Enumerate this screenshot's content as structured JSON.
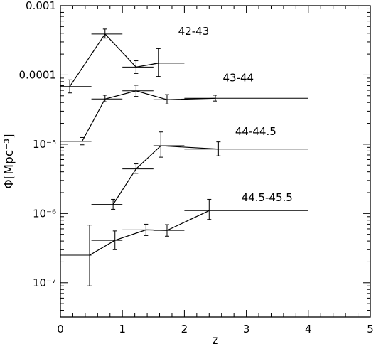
{
  "chart_data": {
    "type": "scatter",
    "xlabel": "z",
    "ylabel": "Φ[Mpc⁻³]",
    "xlim": [
      0,
      5
    ],
    "ylim": [
      3.2e-08,
      0.001
    ],
    "y_scale": "log",
    "x_ticks": [
      "0",
      "1",
      "2",
      "3",
      "4",
      "5"
    ],
    "y_ticks": [
      {
        "value": 0.001,
        "label": "0.001"
      },
      {
        "value": 0.0001,
        "label": "0.0001"
      },
      {
        "value": 1e-05,
        "label": "10⁻⁵"
      },
      {
        "value": 1e-06,
        "label": "10⁻⁶"
      },
      {
        "value": 1e-07,
        "label": "10⁻⁷"
      }
    ],
    "series": [
      {
        "name": "42-43",
        "label_at": {
          "x": 1.9,
          "y": 0.00038
        },
        "points": [
          {
            "x": 0.15,
            "xlo": 0.0,
            "xhi": 0.5,
            "y": 6.8e-05,
            "ylo": 5.5e-05,
            "yhi": 8.5e-05
          },
          {
            "x": 0.72,
            "xlo": 0.5,
            "xhi": 1.0,
            "y": 0.00039,
            "ylo": 0.00034,
            "yhi": 0.00046
          },
          {
            "x": 1.22,
            "xlo": 1.0,
            "xhi": 1.5,
            "y": 0.00013,
            "ylo": 0.000105,
            "yhi": 0.00016
          },
          {
            "x": 1.58,
            "xlo": 1.5,
            "xhi": 2.0,
            "y": 0.000148,
            "ylo": 9.5e-05,
            "yhi": 0.00024
          }
        ]
      },
      {
        "name": "43-44",
        "label_at": {
          "x": 2.62,
          "y": 8.1e-05
        },
        "points": [
          {
            "x": 0.35,
            "xlo": 0.0,
            "xhi": 0.5,
            "y": 1.1e-05,
            "ylo": 9.8e-06,
            "yhi": 1.25e-05
          },
          {
            "x": 0.72,
            "xlo": 0.5,
            "xhi": 1.0,
            "y": 4.5e-05,
            "ylo": 4.1e-05,
            "yhi": 5.1e-05
          },
          {
            "x": 1.22,
            "xlo": 1.0,
            "xhi": 1.5,
            "y": 5.9e-05,
            "ylo": 4.9e-05,
            "yhi": 7.1e-05
          },
          {
            "x": 1.72,
            "xlo": 1.5,
            "xhi": 2.0,
            "y": 4.4e-05,
            "ylo": 3.8e-05,
            "yhi": 5.2e-05
          },
          {
            "x": 2.5,
            "xlo": 2.0,
            "xhi": 4.0,
            "y": 4.6e-05,
            "ylo": 4.2e-05,
            "yhi": 5.1e-05
          }
        ]
      },
      {
        "name": "44-44.5",
        "label_at": {
          "x": 2.82,
          "y": 1.35e-05
        },
        "points": [
          {
            "x": 0.85,
            "xlo": 0.5,
            "xhi": 1.0,
            "y": 1.35e-06,
            "ylo": 1.15e-06,
            "yhi": 1.6e-06
          },
          {
            "x": 1.22,
            "xlo": 1.0,
            "xhi": 1.5,
            "y": 4.4e-06,
            "ylo": 3.8e-06,
            "yhi": 5.2e-06
          },
          {
            "x": 1.62,
            "xlo": 1.5,
            "xhi": 2.0,
            "y": 9.5e-06,
            "ylo": 6.5e-06,
            "yhi": 1.5e-05
          },
          {
            "x": 2.55,
            "xlo": 2.0,
            "xhi": 4.0,
            "y": 8.5e-06,
            "ylo": 6.8e-06,
            "yhi": 1.08e-05
          }
        ]
      },
      {
        "name": "44.5-45.5",
        "label_at": {
          "x": 2.92,
          "y": 1.5e-06
        },
        "points": [
          {
            "x": 0.47,
            "xlo": 0.0,
            "xhi": 0.5,
            "y": 2.5e-07,
            "ylo": 9e-08,
            "yhi": 6.8e-07
          },
          {
            "x": 0.88,
            "xlo": 0.5,
            "xhi": 1.0,
            "y": 4.1e-07,
            "ylo": 3e-07,
            "yhi": 5.6e-07
          },
          {
            "x": 1.38,
            "xlo": 1.0,
            "xhi": 1.5,
            "y": 5.8e-07,
            "ylo": 4.8e-07,
            "yhi": 7e-07
          },
          {
            "x": 1.72,
            "xlo": 1.5,
            "xhi": 2.0,
            "y": 5.7e-07,
            "ylo": 4.7e-07,
            "yhi": 6.9e-07
          },
          {
            "x": 2.4,
            "xlo": 2.0,
            "xhi": 4.0,
            "y": 1.1e-06,
            "ylo": 8.2e-07,
            "yhi": 1.6e-06
          }
        ]
      }
    ]
  }
}
